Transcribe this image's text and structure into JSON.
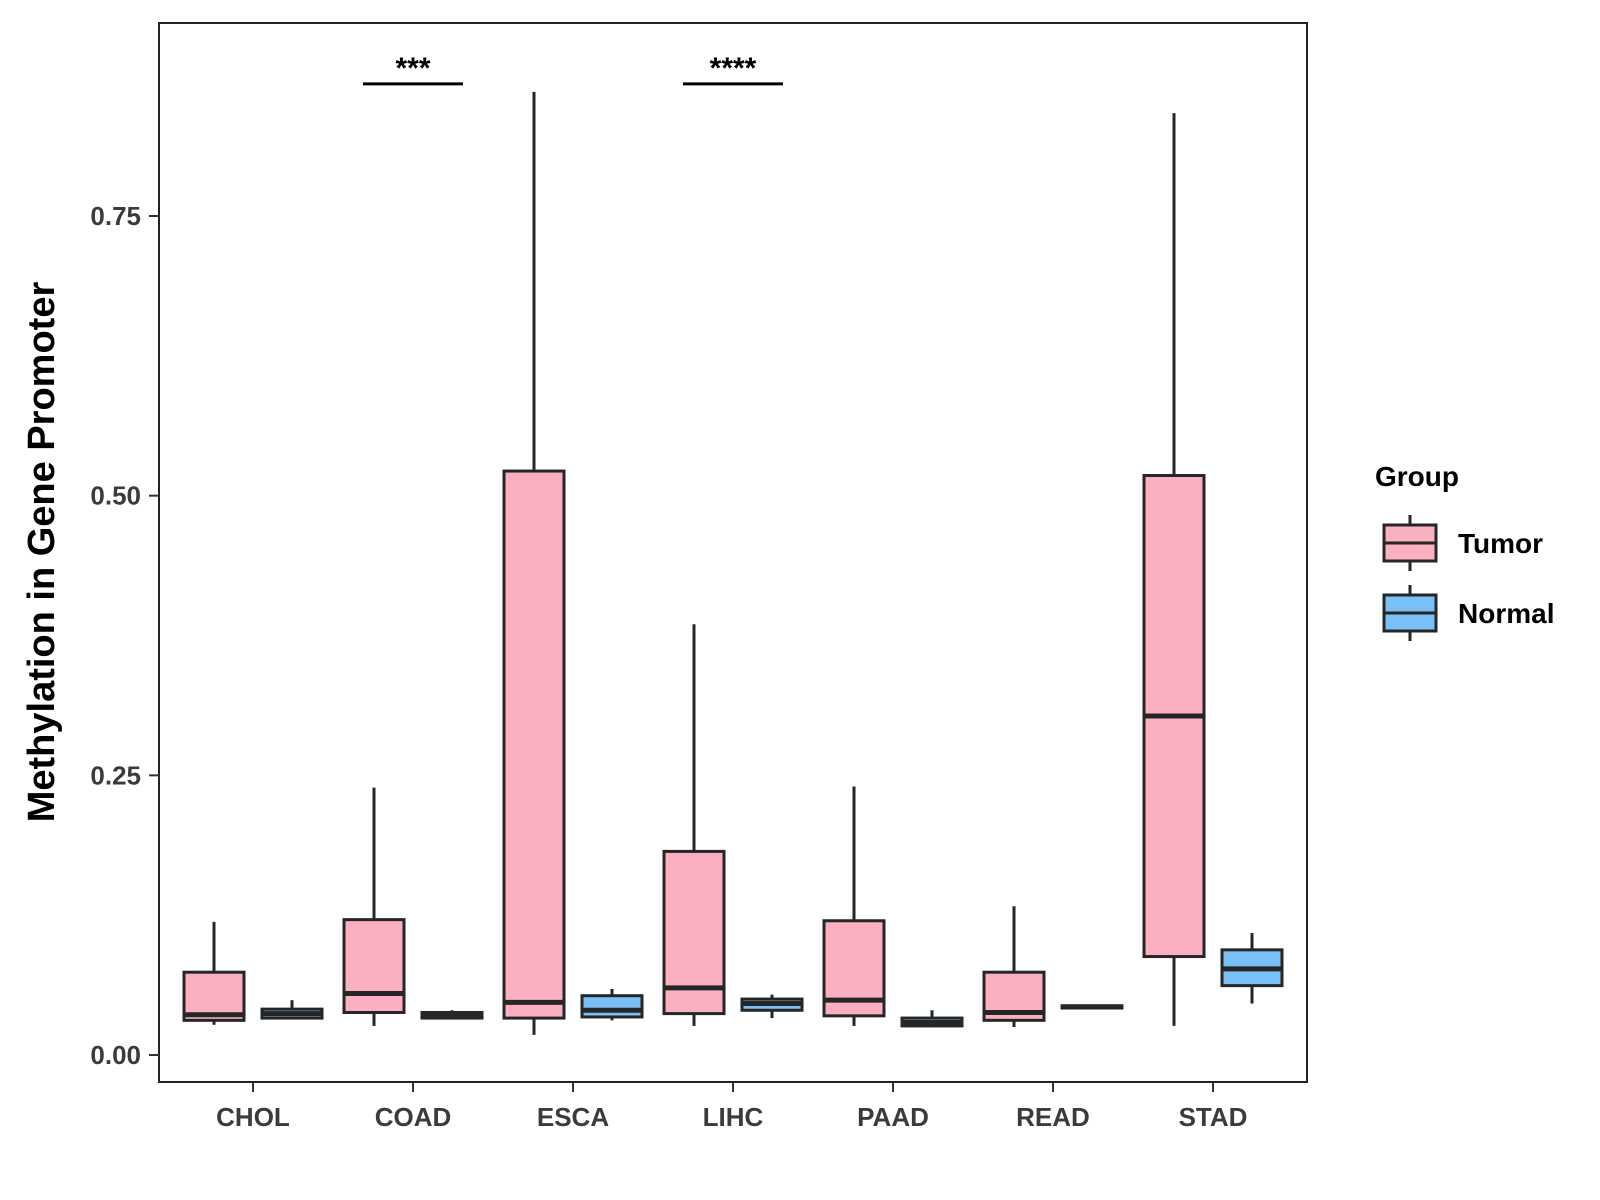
{
  "chart_data": {
    "type": "boxplot",
    "title": "",
    "xlabel": "",
    "ylabel": "Methylation in Gene Promoter",
    "ylim": [
      -0.02,
      0.925
    ],
    "yticks": [
      0.0,
      0.25,
      0.5,
      0.75
    ],
    "ytick_labels": [
      "0.00",
      "0.25",
      "0.50",
      "0.75"
    ],
    "categories": [
      "CHOL",
      "COAD",
      "ESCA",
      "LIHC",
      "PAAD",
      "READ",
      "STAD"
    ],
    "colors": {
      "Tumor": "#fbb0c2",
      "Normal": "#79c0f9",
      "stroke": "#262626"
    },
    "legend": {
      "title": "Group",
      "position": "right",
      "entries": [
        "Tumor",
        "Normal"
      ]
    },
    "series": [
      {
        "name": "Tumor",
        "boxes": [
          {
            "category": "CHOL",
            "min": 0.027,
            "q1": 0.031,
            "median": 0.036,
            "q3": 0.074,
            "max": 0.119
          },
          {
            "category": "COAD",
            "min": 0.026,
            "q1": 0.038,
            "median": 0.055,
            "q3": 0.121,
            "max": 0.239
          },
          {
            "category": "ESCA",
            "min": 0.018,
            "q1": 0.033,
            "median": 0.047,
            "q3": 0.522,
            "max": 0.861
          },
          {
            "category": "LIHC",
            "min": 0.026,
            "q1": 0.037,
            "median": 0.06,
            "q3": 0.182,
            "max": 0.385
          },
          {
            "category": "PAAD",
            "min": 0.026,
            "q1": 0.035,
            "median": 0.049,
            "q3": 0.12,
            "max": 0.24
          },
          {
            "category": "READ",
            "min": 0.025,
            "q1": 0.031,
            "median": 0.038,
            "q3": 0.074,
            "max": 0.133
          },
          {
            "category": "STAD",
            "min": 0.026,
            "q1": 0.088,
            "median": 0.303,
            "q3": 0.518,
            "max": 0.842
          }
        ]
      },
      {
        "name": "Normal",
        "boxes": [
          {
            "category": "CHOL",
            "min": 0.032,
            "q1": 0.033,
            "median": 0.037,
            "q3": 0.041,
            "max": 0.049
          },
          {
            "category": "COAD",
            "min": 0.032,
            "q1": 0.033,
            "median": 0.035,
            "q3": 0.038,
            "max": 0.04
          },
          {
            "category": "ESCA",
            "min": 0.031,
            "q1": 0.034,
            "median": 0.04,
            "q3": 0.053,
            "max": 0.059
          },
          {
            "category": "LIHC",
            "min": 0.033,
            "q1": 0.04,
            "median": 0.046,
            "q3": 0.05,
            "max": 0.054
          },
          {
            "category": "PAAD",
            "min": 0.025,
            "q1": 0.026,
            "median": 0.029,
            "q3": 0.033,
            "max": 0.04
          },
          {
            "category": "READ",
            "min": 0.041,
            "q1": 0.042,
            "median": 0.043,
            "q3": 0.044,
            "max": 0.045
          },
          {
            "category": "STAD",
            "min": 0.046,
            "q1": 0.062,
            "median": 0.077,
            "q3": 0.094,
            "max": 0.109
          }
        ]
      }
    ],
    "annotations": [
      {
        "category": "COAD",
        "label": "***",
        "y": 0.861
      },
      {
        "category": "LIHC",
        "label": "****",
        "y": 0.861
      }
    ]
  }
}
